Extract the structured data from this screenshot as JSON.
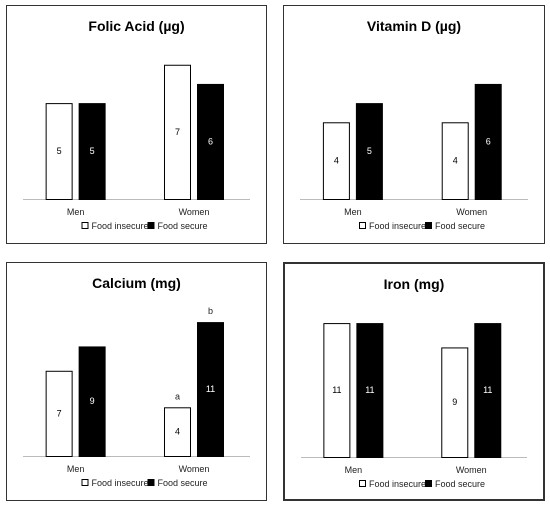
{
  "chart_data": [
    {
      "type": "bar",
      "title": "Folic Acid (µg)",
      "categories": [
        "Men",
        "Women"
      ],
      "series": [
        {
          "name": "Food insecure",
          "values": [
            5,
            7
          ],
          "labels": [
            "5",
            "7"
          ],
          "color": "#ffffff"
        },
        {
          "name": "Food secure",
          "values": [
            5,
            6
          ],
          "labels": [
            "5",
            "6"
          ],
          "color": "#000000"
        }
      ],
      "annotations": [],
      "ylim": [
        0,
        7.3
      ],
      "grid": false,
      "legend": "bottom"
    },
    {
      "type": "bar",
      "title": "Vitamin D (µg)",
      "categories": [
        "Men",
        "Women"
      ],
      "series": [
        {
          "name": "Food insecure",
          "values": [
            4,
            4
          ],
          "labels": [
            "4",
            "4"
          ],
          "color": "#ffffff"
        },
        {
          "name": "Food secure",
          "values": [
            5,
            6
          ],
          "labels": [
            "5",
            "6"
          ],
          "color": "#000000"
        }
      ],
      "annotations": [],
      "ylim": [
        0,
        7.3
      ],
      "grid": false,
      "legend": "bottom"
    },
    {
      "type": "bar",
      "title": "Calcium (mg)",
      "categories": [
        "Men",
        "Women"
      ],
      "series": [
        {
          "name": "Food insecure",
          "values": [
            7,
            4
          ],
          "labels": [
            "7",
            "4"
          ],
          "color": "#ffffff"
        },
        {
          "name": "Food secure",
          "values": [
            9,
            11
          ],
          "labels": [
            "9",
            "11"
          ],
          "color": "#000000"
        }
      ],
      "annotations": [
        {
          "series": 0,
          "category": 1,
          "text": "a"
        },
        {
          "series": 1,
          "category": 1,
          "text": "b"
        }
      ],
      "ylim": [
        0,
        11.5
      ],
      "grid": false,
      "legend": "bottom"
    },
    {
      "type": "bar",
      "title": "Iron (mg)",
      "categories": [
        "Men",
        "Women"
      ],
      "series": [
        {
          "name": "Food insecure",
          "values": [
            11,
            9
          ],
          "labels": [
            "11",
            "9"
          ],
          "color": "#ffffff"
        },
        {
          "name": "Food secure",
          "values": [
            11,
            11
          ],
          "labels": [
            "11",
            "11"
          ],
          "color": "#000000"
        }
      ],
      "annotations": [],
      "ylim": [
        0,
        11.5
      ],
      "grid": false,
      "legend": "bottom"
    }
  ]
}
